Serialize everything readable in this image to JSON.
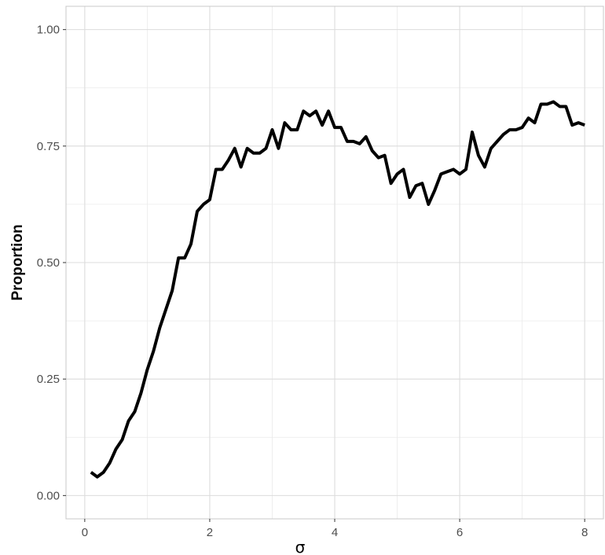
{
  "chart_data": {
    "type": "line",
    "title": "",
    "xlabel": "σ",
    "ylabel": "Proportion",
    "xlim": [
      -0.3,
      8.3
    ],
    "ylim": [
      -0.05,
      1.05
    ],
    "x_ticks": [
      0,
      2,
      4,
      6,
      8
    ],
    "x_tick_labels": [
      "0",
      "2",
      "4",
      "6",
      "8"
    ],
    "y_ticks": [
      0,
      0.25,
      0.5,
      0.75,
      1
    ],
    "y_tick_labels": [
      "0.00",
      "0.25",
      "0.50",
      "0.75",
      "1.00"
    ],
    "grid": true,
    "series": [
      {
        "x": [
          0.1,
          0.2,
          0.3,
          0.4,
          0.5,
          0.6,
          0.7,
          0.8,
          0.9,
          1.0,
          1.1,
          1.2,
          1.3,
          1.4,
          1.5,
          1.6,
          1.7,
          1.8,
          1.9,
          2.0,
          2.1,
          2.2,
          2.3,
          2.4,
          2.5,
          2.6,
          2.7,
          2.8,
          2.9,
          3.0,
          3.1,
          3.2,
          3.3,
          3.4,
          3.5,
          3.6,
          3.7,
          3.8,
          3.9,
          4.0,
          4.1,
          4.2,
          4.3,
          4.4,
          4.5,
          4.6,
          4.7,
          4.8,
          4.9,
          5.0,
          5.1,
          5.2,
          5.3,
          5.4,
          5.5,
          5.6,
          5.7,
          5.8,
          5.9,
          6.0,
          6.1,
          6.2,
          6.3,
          6.4,
          6.5,
          6.6,
          6.7,
          6.8,
          6.9,
          7.0,
          7.1,
          7.2,
          7.3,
          7.4,
          7.5,
          7.6,
          7.7,
          7.8,
          7.9,
          8.0
        ],
        "y": [
          0.05,
          0.04,
          0.05,
          0.07,
          0.1,
          0.12,
          0.16,
          0.18,
          0.22,
          0.27,
          0.31,
          0.36,
          0.4,
          0.44,
          0.51,
          0.51,
          0.54,
          0.61,
          0.625,
          0.635,
          0.7,
          0.7,
          0.72,
          0.745,
          0.705,
          0.745,
          0.735,
          0.735,
          0.745,
          0.785,
          0.745,
          0.8,
          0.785,
          0.785,
          0.825,
          0.815,
          0.825,
          0.795,
          0.825,
          0.79,
          0.79,
          0.76,
          0.76,
          0.755,
          0.77,
          0.74,
          0.725,
          0.73,
          0.67,
          0.69,
          0.7,
          0.64,
          0.665,
          0.67,
          0.625,
          0.655,
          0.69,
          0.695,
          0.7,
          0.69,
          0.7,
          0.78,
          0.73,
          0.705,
          0.745,
          0.76,
          0.775,
          0.785,
          0.785,
          0.79,
          0.81,
          0.8,
          0.84,
          0.84,
          0.845,
          0.835,
          0.835,
          0.795,
          0.8,
          0.795
        ]
      }
    ]
  },
  "colors": {
    "line": "#000000",
    "grid": "#dcdcdc",
    "panel_border": "#c8c8c8",
    "tick_text": "#4d4d4d"
  }
}
